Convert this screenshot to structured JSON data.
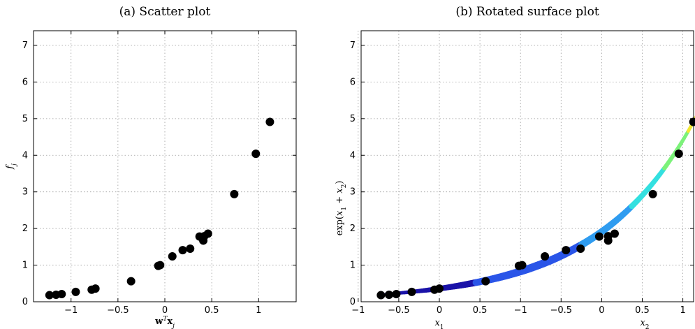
{
  "chart_data": [
    {
      "type": "scatter",
      "title": "(a) Scatter plot",
      "xlabel": "w^T x_j",
      "ylabel": "f_j",
      "xlim": [
        -1.4,
        1.4
      ],
      "ylim": [
        0,
        7.4
      ],
      "xticks": [
        -1,
        -0.5,
        0,
        0.5,
        1
      ],
      "yticks": [
        0,
        1,
        2,
        3,
        4,
        5,
        6,
        7
      ],
      "xtick_labels": [
        "−1",
        "−0.5",
        "0",
        "0.5",
        "1"
      ],
      "ytick_labels": [
        "0",
        "1",
        "2",
        "3",
        "4",
        "5",
        "6",
        "7"
      ],
      "grid": true,
      "points": [
        [
          -1.23,
          0.18
        ],
        [
          -1.16,
          0.19
        ],
        [
          -1.1,
          0.21
        ],
        [
          -0.95,
          0.27
        ],
        [
          -0.78,
          0.33
        ],
        [
          -0.74,
          0.36
        ],
        [
          -0.36,
          0.56
        ],
        [
          -0.07,
          0.98
        ],
        [
          -0.05,
          1.0
        ],
        [
          0.08,
          1.24
        ],
        [
          0.19,
          1.41
        ],
        [
          0.27,
          1.45
        ],
        [
          0.37,
          1.78
        ],
        [
          0.41,
          1.67
        ],
        [
          0.42,
          1.79
        ],
        [
          0.46,
          1.86
        ],
        [
          0.74,
          2.94
        ],
        [
          0.97,
          4.04
        ],
        [
          1.12,
          4.91
        ]
      ],
      "marker_color": "#000000"
    },
    {
      "type": "scatter",
      "title": "(b) Rotated surface plot",
      "ylabel": "exp(x_1 + x_2)",
      "x1_label": "x_1",
      "x2_label": "x_2",
      "ylim": [
        0,
        7.4
      ],
      "yticks": [
        0,
        1,
        2,
        3,
        4,
        5,
        6,
        7
      ],
      "ytick_labels": [
        "0",
        "1",
        "2",
        "3",
        "4",
        "5",
        "6",
        "7"
      ],
      "xtick_labels": [
        "−1",
        "−0.5",
        "0",
        "0.5",
        "−1",
        "−0.5",
        "0",
        "0.5",
        "1"
      ],
      "grid": true,
      "surface_colormap": [
        "#1a12a8",
        "#2a55e8",
        "#2f9cf0",
        "#33e0e0",
        "#7cf27a",
        "#f2e832",
        "#f59a22",
        "#e03a18"
      ],
      "points": [
        [
          -0.72,
          0.18
        ],
        [
          -0.62,
          0.19
        ],
        [
          -0.53,
          0.21
        ],
        [
          -0.34,
          0.27
        ],
        [
          -0.06,
          0.33
        ],
        [
          0.0,
          0.36
        ],
        [
          0.57,
          0.56
        ],
        [
          0.98,
          0.98
        ],
        [
          1.02,
          1.0
        ],
        [
          1.3,
          1.24
        ],
        [
          1.56,
          1.41
        ],
        [
          1.74,
          1.45
        ],
        [
          1.97,
          1.78
        ],
        [
          2.08,
          1.67
        ],
        [
          2.08,
          1.79
        ],
        [
          2.16,
          1.86
        ],
        [
          2.63,
          2.94
        ],
        [
          2.95,
          4.04
        ],
        [
          3.13,
          4.91
        ]
      ],
      "surface_x_range": [
        -0.75,
        3.52
      ],
      "marker_color": "#000000"
    }
  ]
}
